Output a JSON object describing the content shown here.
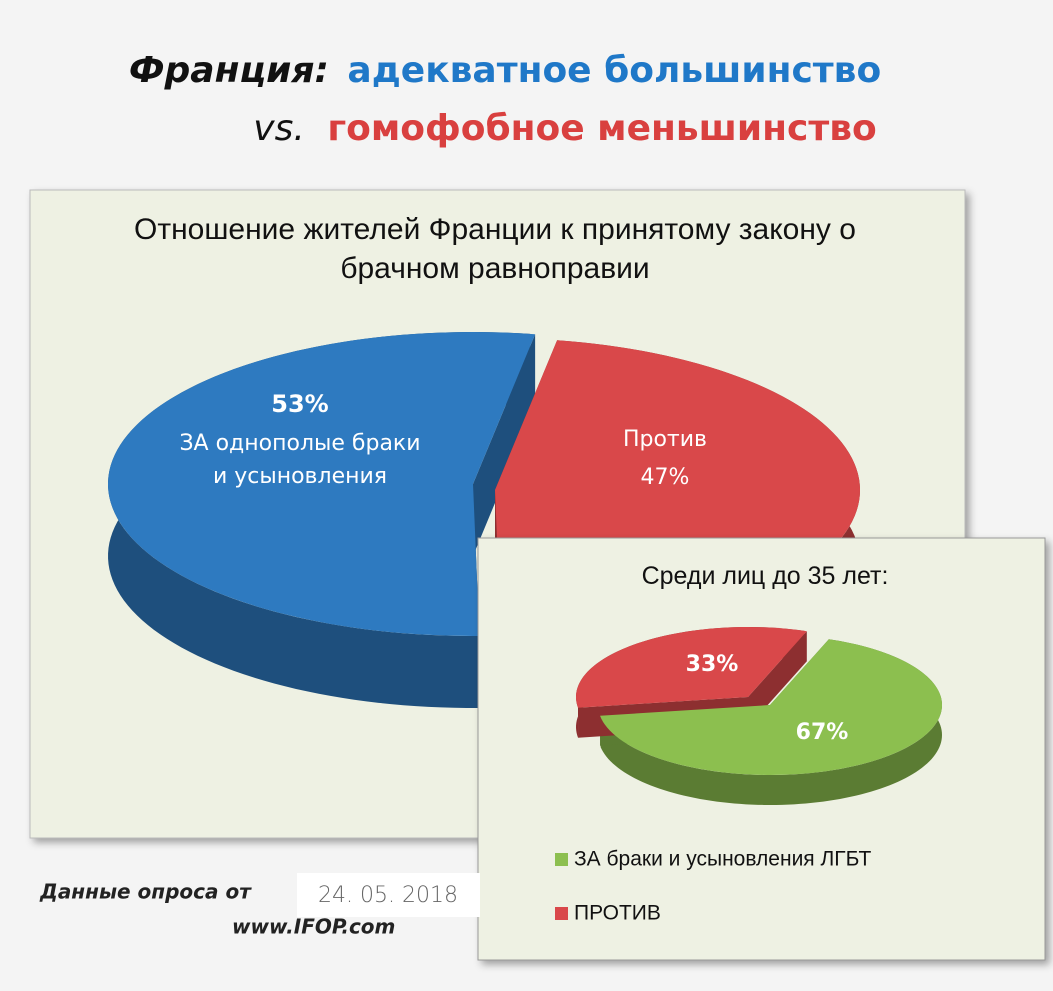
{
  "header": {
    "title_country": "Франция:",
    "title_majority": "адекватное большинство",
    "title_vs": "vs.",
    "title_minority": "гомофобное меньшинство"
  },
  "chart_data": [
    {
      "type": "pie",
      "title": "Отношение жителей Франции к принятому закону о брачном равноправии",
      "categories": [
        "ЗА однополые браки и усыновления",
        "Против"
      ],
      "values": [
        53,
        47
      ],
      "value_labels": [
        "53%",
        "47%"
      ],
      "colors": [
        "#2e7ac0",
        "#d9484a"
      ]
    },
    {
      "type": "pie",
      "title": "Среди лиц до 35 лет:",
      "categories": [
        "ЗА браки и усыновления ЛГБТ",
        "ПРОТИВ"
      ],
      "values": [
        67,
        33
      ],
      "value_labels": [
        "67%",
        "33%"
      ],
      "colors": [
        "#8cbf4f",
        "#d9484a"
      ],
      "legend": "bottom"
    }
  ],
  "footer": {
    "source": "Данные опроса от",
    "date": "24. 05. 2018",
    "site": "www.IFOP.com"
  }
}
